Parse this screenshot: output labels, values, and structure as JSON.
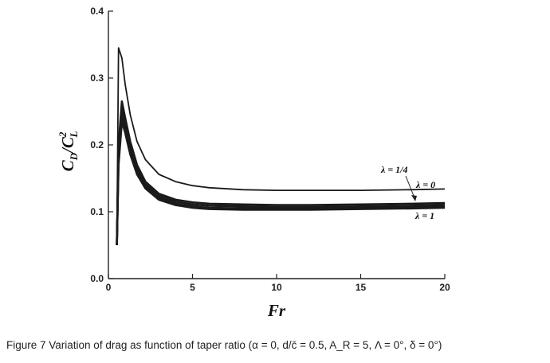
{
  "caption": "Figure 7 Variation of drag as function of taper ratio (α = 0, d/c̄ = 0.5, A_R = 5, Λ = 0°, δ = 0°)",
  "chart_data": {
    "type": "line",
    "title": "",
    "xlabel": "Fr",
    "ylabel": "C_D/C_L^2",
    "xlim": [
      0,
      20
    ],
    "ylim": [
      0,
      0.4
    ],
    "x_ticks": [
      "0",
      "5",
      "10",
      "15",
      "20"
    ],
    "y_ticks": [
      "0.0",
      "0.1",
      "0.2",
      "0.3",
      "0.4"
    ],
    "grid": false,
    "legend": "none",
    "series": [
      {
        "name": "λ = 0",
        "x": [
          0.5,
          0.6,
          0.8,
          1.0,
          1.3,
          1.7,
          2.2,
          3.0,
          4.0,
          5.0,
          6.0,
          8.0,
          10.0,
          12.0,
          15.0,
          18.0,
          20.0
        ],
        "y": [
          0.05,
          0.345,
          0.33,
          0.29,
          0.245,
          0.205,
          0.178,
          0.156,
          0.145,
          0.139,
          0.136,
          0.133,
          0.132,
          0.132,
          0.132,
          0.133,
          0.134
        ]
      },
      {
        "name": "λ = 1/4",
        "x": [
          0.5,
          0.6,
          0.8,
          1.0,
          1.3,
          1.7,
          2.2,
          3.0,
          4.0,
          5.0,
          6.0,
          8.0,
          10.0,
          12.0,
          15.0,
          18.0,
          20.0
        ],
        "y": [
          0.05,
          0.2,
          0.265,
          0.24,
          0.205,
          0.17,
          0.145,
          0.127,
          0.118,
          0.114,
          0.112,
          0.111,
          0.11,
          0.11,
          0.111,
          0.112,
          0.113
        ]
      },
      {
        "name": "",
        "x": [
          0.5,
          0.6,
          0.8,
          1.0,
          1.3,
          1.7,
          2.2,
          3.0,
          4.0,
          5.0,
          6.0,
          8.0,
          10.0,
          12.0,
          15.0,
          18.0,
          20.0
        ],
        "y": [
          0.05,
          0.19,
          0.255,
          0.232,
          0.198,
          0.165,
          0.141,
          0.124,
          0.115,
          0.111,
          0.109,
          0.108,
          0.107,
          0.107,
          0.108,
          0.109,
          0.11
        ]
      },
      {
        "name": "",
        "x": [
          0.5,
          0.6,
          0.8,
          1.0,
          1.3,
          1.7,
          2.2,
          3.0,
          4.0,
          5.0,
          6.0,
          8.0,
          10.0,
          12.0,
          15.0,
          18.0,
          20.0
        ],
        "y": [
          0.05,
          0.18,
          0.245,
          0.225,
          0.192,
          0.16,
          0.138,
          0.121,
          0.112,
          0.108,
          0.106,
          0.105,
          0.105,
          0.105,
          0.106,
          0.107,
          0.108
        ]
      },
      {
        "name": "λ = 1",
        "x": [
          0.5,
          0.6,
          0.8,
          1.0,
          1.3,
          1.7,
          2.2,
          3.0,
          4.0,
          5.0,
          6.0,
          8.0,
          10.0,
          12.0,
          15.0,
          18.0,
          20.0
        ],
        "y": [
          0.05,
          0.17,
          0.235,
          0.218,
          0.186,
          0.156,
          0.135,
          0.118,
          0.11,
          0.106,
          0.104,
          0.103,
          0.103,
          0.103,
          0.104,
          0.105,
          0.106
        ]
      }
    ],
    "annotations": [
      "λ = 1/4",
      "λ = 0",
      "λ = 1"
    ]
  }
}
